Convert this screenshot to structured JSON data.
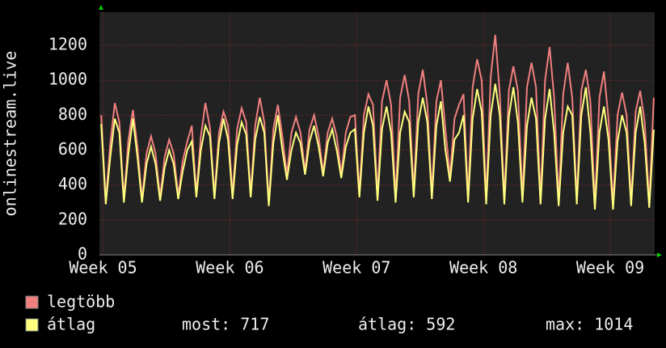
{
  "chart_data": {
    "type": "line",
    "y_label": "onlinestream.live",
    "x": [
      0,
      0.25,
      0.5,
      0.75,
      1,
      1.25,
      1.5,
      1.75,
      2,
      2.25,
      2.5,
      2.75,
      3,
      3.25,
      3.5,
      3.75,
      4,
      4.25,
      4.5,
      4.75,
      5,
      5.25,
      5.5,
      5.75,
      6,
      6.25,
      6.5,
      6.75,
      7,
      7.25,
      7.5,
      7.75,
      8,
      8.25,
      8.5,
      8.75,
      9,
      9.25,
      9.5,
      9.75,
      10,
      10.25,
      10.5,
      10.75,
      11,
      11.25,
      11.5,
      11.75,
      12,
      12.25,
      12.5,
      12.75,
      13,
      13.25,
      13.5,
      13.75,
      14,
      14.25,
      14.5,
      14.75,
      15,
      15.25,
      15.5,
      15.75,
      16,
      16.25,
      16.5,
      16.75,
      17,
      17.25,
      17.5,
      17.75,
      18,
      18.25,
      18.5,
      18.75,
      19,
      19.25,
      19.5,
      19.75,
      20,
      20.25,
      20.5,
      20.75,
      21,
      21.25,
      21.5,
      21.75,
      22,
      22.25,
      22.5,
      22.75,
      23,
      23.25,
      23.5,
      23.75,
      24,
      24.25,
      24.5,
      24.75,
      25,
      25.25,
      25.5,
      25.75,
      26,
      26.25,
      26.5,
      26.75,
      27,
      27.25,
      27.5,
      27.75,
      28,
      28.25,
      28.5,
      28.75,
      29,
      29.25,
      29.5,
      29.75,
      30,
      30.25,
      30.5
    ],
    "series": [
      {
        "name": "legtöbb",
        "color": "#f07f7f",
        "values": [
          800,
          310,
          640,
          870,
          760,
          320,
          660,
          830,
          620,
          320,
          580,
          680,
          580,
          330,
          560,
          660,
          580,
          340,
          540,
          650,
          740,
          350,
          680,
          870,
          730,
          340,
          700,
          820,
          740,
          340,
          720,
          840,
          760,
          350,
          740,
          900,
          760,
          300,
          720,
          860,
          680,
          460,
          700,
          790,
          700,
          480,
          720,
          800,
          680,
          470,
          700,
          780,
          680,
          460,
          700,
          790,
          800,
          360,
          800,
          920,
          860,
          340,
          880,
          1000,
          860,
          330,
          900,
          1030,
          880,
          360,
          920,
          1060,
          860,
          350,
          880,
          1000,
          720,
          450,
          780,
          860,
          920,
          330,
          960,
          1120,
          1000,
          320,
          1020,
          1260,
          920,
          320,
          940,
          1080,
          940,
          330,
          960,
          1100,
          960,
          320,
          1000,
          1190,
          900,
          310,
          920,
          1100,
          900,
          320,
          940,
          1060,
          880,
          290,
          900,
          1050,
          780,
          290,
          800,
          930,
          800,
          310,
          820,
          940,
          760,
          300,
          900
        ]
      },
      {
        "name": "átlag",
        "color": "#ffff7f",
        "values": [
          750,
          290,
          560,
          780,
          700,
          300,
          580,
          780,
          560,
          300,
          520,
          620,
          520,
          310,
          500,
          600,
          520,
          320,
          480,
          600,
          650,
          330,
          600,
          740,
          680,
          320,
          640,
          780,
          660,
          320,
          630,
          760,
          690,
          330,
          660,
          790,
          700,
          280,
          640,
          800,
          600,
          430,
          600,
          700,
          640,
          460,
          650,
          740,
          620,
          450,
          640,
          720,
          600,
          440,
          620,
          700,
          720,
          330,
          700,
          850,
          740,
          310,
          720,
          850,
          700,
          300,
          700,
          820,
          760,
          330,
          760,
          900,
          760,
          320,
          740,
          880,
          600,
          420,
          660,
          700,
          800,
          300,
          780,
          950,
          820,
          290,
          800,
          980,
          800,
          290,
          790,
          960,
          760,
          300,
          740,
          900,
          780,
          290,
          780,
          950,
          700,
          280,
          700,
          850,
          800,
          290,
          800,
          960,
          700,
          260,
          700,
          850,
          660,
          260,
          650,
          800,
          700,
          280,
          700,
          850,
          640,
          270,
          717
        ]
      }
    ],
    "stats": [
      "most: 717",
      "átlag: 592",
      "max: 1014"
    ],
    "xlim": [
      -0.1,
      30.55
    ],
    "xticks": [
      {
        "value": 0.1,
        "label": "Week 05"
      },
      {
        "value": 7.1,
        "label": "Week 06"
      },
      {
        "value": 14.1,
        "label": "Week 07"
      },
      {
        "value": 21.1,
        "label": "Week 08"
      },
      {
        "value": 28.1,
        "label": "Week 09"
      }
    ],
    "ylim": [
      0,
      1390
    ],
    "yticks": [
      0,
      200,
      400,
      600,
      800,
      1000,
      1200
    ],
    "grid": true
  }
}
